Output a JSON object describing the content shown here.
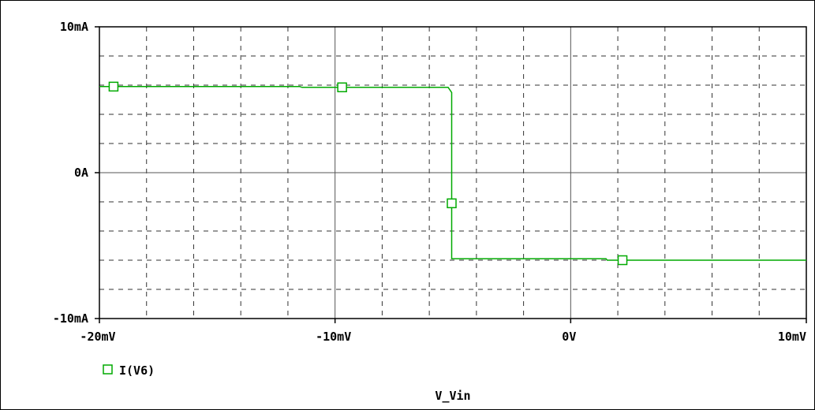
{
  "chart_data": {
    "type": "line",
    "xlabel": "V_Vin",
    "x_ticks": [
      "-20mV",
      "-10mV",
      "0V",
      "10mV"
    ],
    "y_ticks": [
      "10mA",
      "0A",
      "-10mA"
    ],
    "xlim": [
      -20,
      10
    ],
    "ylim": [
      -10,
      10
    ],
    "x_unit": "mV",
    "y_unit": "mA",
    "grid": true,
    "legend_position": "bottom-left",
    "series": [
      {
        "name": "I(V6)",
        "color": "#00aa00",
        "marker": "square-open",
        "points": [
          [
            -20.0,
            5.9
          ],
          [
            -11.5,
            5.9
          ],
          [
            -11.4,
            5.85
          ],
          [
            -5.2,
            5.85
          ],
          [
            -5.05,
            5.5
          ],
          [
            -5.05,
            -5.9
          ],
          [
            1.5,
            -5.9
          ],
          [
            1.55,
            -6.0
          ],
          [
            10.0,
            -6.0
          ]
        ],
        "markers": [
          [
            -19.4,
            5.9
          ],
          [
            -9.7,
            5.85
          ],
          [
            -5.05,
            -2.1
          ],
          [
            2.2,
            -6.0
          ]
        ]
      }
    ]
  }
}
